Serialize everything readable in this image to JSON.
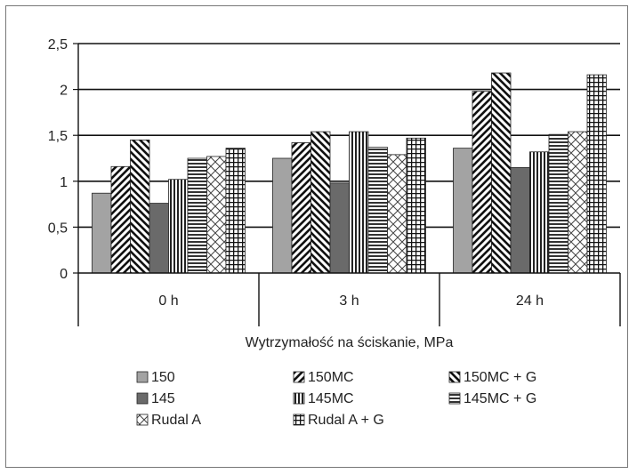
{
  "chart_data": {
    "type": "bar",
    "categories": [
      "0 h",
      "3 h",
      "24 h"
    ],
    "xlabel": "Wytrzymałość na ściskanie, MPa",
    "ylabel": "",
    "ylim": [
      0,
      2.5
    ],
    "yticks": [
      "0",
      "0,5",
      "1",
      "1,5",
      "2",
      "2,5"
    ],
    "grid": true,
    "legend_position": "bottom",
    "series": [
      {
        "name": "150",
        "pattern": "solid-light",
        "values": [
          0.87,
          1.25,
          1.36
        ]
      },
      {
        "name": "150MC",
        "pattern": "diag-up",
        "values": [
          1.16,
          1.42,
          1.98
        ]
      },
      {
        "name": "150MC + G",
        "pattern": "diag-down",
        "values": [
          1.45,
          1.54,
          2.18
        ]
      },
      {
        "name": "145",
        "pattern": "solid-dark",
        "values": [
          0.76,
          0.98,
          1.15
        ]
      },
      {
        "name": "145MC",
        "pattern": "vertical",
        "values": [
          1.02,
          1.54,
          1.32
        ]
      },
      {
        "name": "145MC + G",
        "pattern": "horizontal",
        "values": [
          1.25,
          1.37,
          1.51
        ]
      },
      {
        "name": "Rudal A",
        "pattern": "crosshatch",
        "values": [
          1.27,
          1.29,
          1.54
        ]
      },
      {
        "name": "Rudal A + G",
        "pattern": "grid",
        "values": [
          1.36,
          1.47,
          2.16
        ]
      }
    ]
  }
}
